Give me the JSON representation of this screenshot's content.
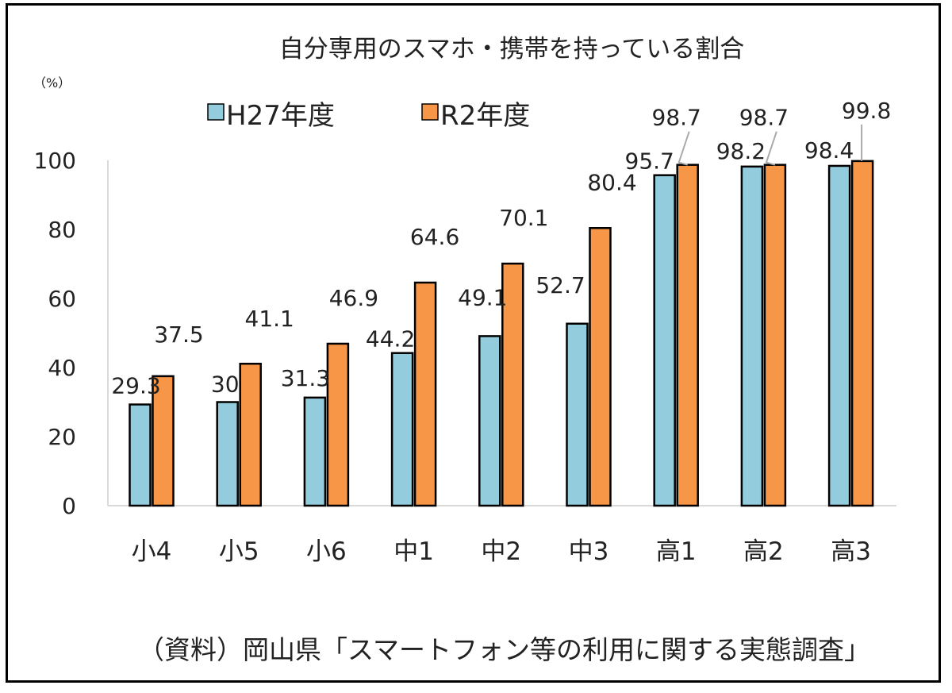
{
  "chart_data": {
    "type": "bar",
    "title": "自分専用のスマホ・携帯を持っている割合",
    "unit_label": "（%）",
    "categories": [
      "小4",
      "小5",
      "小6",
      "中1",
      "中2",
      "中3",
      "高1",
      "高2",
      "高3"
    ],
    "series": [
      {
        "name": "H27年度",
        "color": "#93CDDD",
        "values": [
          29.3,
          30,
          31.3,
          44.2,
          49.1,
          52.7,
          95.7,
          98.2,
          98.4
        ]
      },
      {
        "name": "R2年度",
        "color": "#F79646",
        "values": [
          37.5,
          41.1,
          46.9,
          64.6,
          70.1,
          80.4,
          98.7,
          98.7,
          99.8
        ]
      }
    ],
    "ylim": [
      0,
      100
    ],
    "yticks": [
      0,
      20,
      40,
      60,
      80,
      100
    ],
    "legend_position": "top-left",
    "grid": false,
    "source": "（資料）岡山県「スマートフォン等の利用に関する実態調査」"
  }
}
